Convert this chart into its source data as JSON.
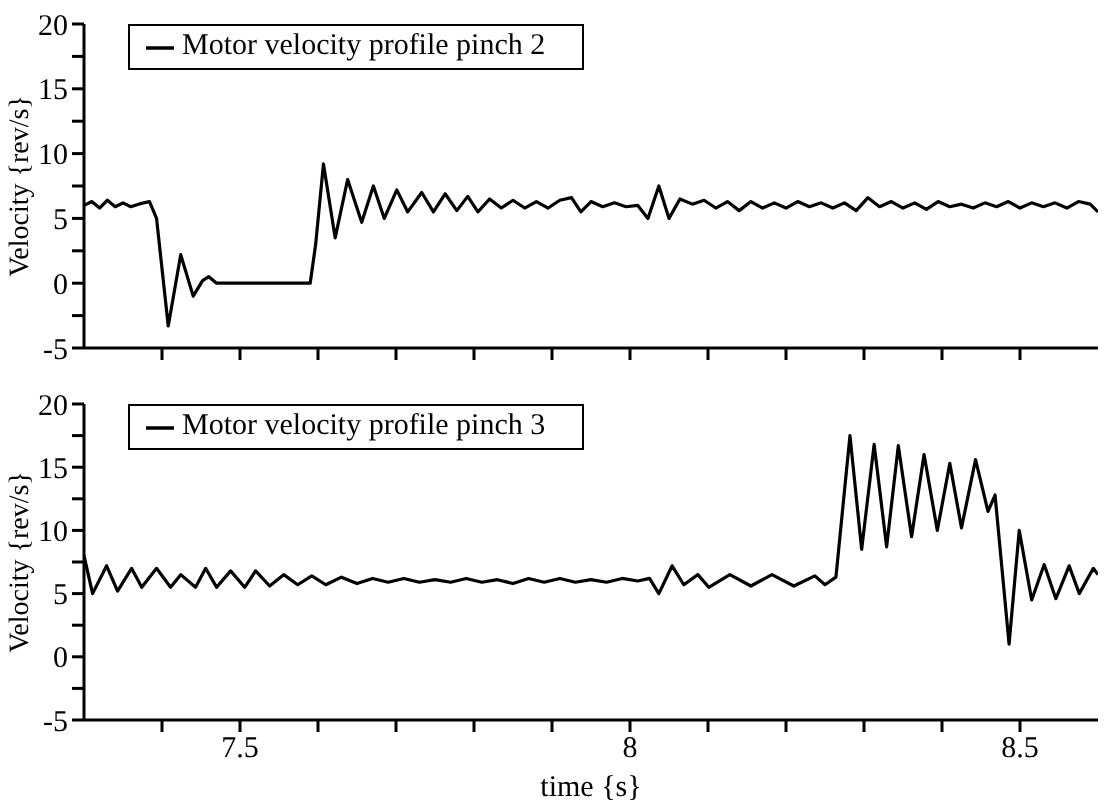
{
  "chart_data": [
    {
      "type": "line",
      "ylabel": "Velocity {rev/s}",
      "xlim": [
        7.3,
        8.6
      ],
      "xticks": [
        {
          "value": 7.4,
          "label": null
        },
        {
          "value": 7.5,
          "label": null
        },
        {
          "value": 7.6,
          "label": null
        },
        {
          "value": 7.7,
          "label": null
        },
        {
          "value": 7.8,
          "label": null
        },
        {
          "value": 7.9,
          "label": null
        },
        {
          "value": 8,
          "label": null
        },
        {
          "value": 8.1,
          "label": null
        },
        {
          "value": 8.2,
          "label": null
        },
        {
          "value": 8.3,
          "label": null
        },
        {
          "value": 8.4,
          "label": null
        },
        {
          "value": 8.5,
          "label": null
        }
      ],
      "ylim": [
        -5,
        20
      ],
      "yticks": [
        -5,
        {
          "value": -2.5,
          "label": null
        },
        0,
        {
          "value": 2.5,
          "label": null
        },
        5,
        {
          "value": 7.5,
          "label": null
        },
        10,
        {
          "value": 12.5,
          "label": null
        },
        15,
        {
          "value": 17.5,
          "label": null
        },
        20
      ],
      "tick_labels": "y",
      "legend": "top left",
      "grid": false,
      "marker": "none",
      "line_style": "solid",
      "series": [
        {
          "name": "Motor velocity profile pinch 2",
          "color": "#000000",
          "x": [
            7.3,
            7.31,
            7.32,
            7.33,
            7.34,
            7.35,
            7.36,
            7.37,
            7.384,
            7.393,
            7.408,
            7.424,
            7.44,
            7.452,
            7.46,
            7.47,
            7.59,
            7.597,
            7.607,
            7.622,
            7.638,
            7.656,
            7.671,
            7.685,
            7.701,
            7.715,
            7.733,
            7.748,
            7.763,
            7.778,
            7.792,
            7.805,
            7.82,
            7.835,
            7.85,
            7.865,
            7.88,
            7.895,
            7.91,
            7.925,
            7.937,
            7.95,
            7.965,
            7.98,
            7.995,
            8.01,
            8.023,
            8.037,
            8.05,
            8.064,
            8.08,
            8.095,
            8.11,
            8.125,
            8.14,
            8.155,
            8.17,
            8.185,
            8.2,
            8.215,
            8.23,
            8.245,
            8.26,
            8.275,
            8.29,
            8.305,
            8.32,
            8.335,
            8.35,
            8.365,
            8.38,
            8.395,
            8.41,
            8.425,
            8.44,
            8.455,
            8.47,
            8.485,
            8.5,
            8.515,
            8.53,
            8.545,
            8.56,
            8.575,
            8.59,
            8.6
          ],
          "values": [
            6,
            6.3,
            5.8,
            6.4,
            5.9,
            6.2,
            5.9,
            6.1,
            6.3,
            5,
            -3.3,
            2.2,
            -1,
            0.2,
            0.5,
            0,
            0,
            3,
            9.2,
            3.5,
            8,
            4.7,
            7.5,
            5,
            7.2,
            5.5,
            7,
            5.5,
            6.9,
            5.6,
            6.7,
            5.5,
            6.5,
            5.8,
            6.4,
            5.8,
            6.3,
            5.8,
            6.4,
            6.6,
            5.5,
            6.3,
            5.9,
            6.2,
            5.9,
            6,
            5,
            7.5,
            5,
            6.5,
            6.1,
            6.4,
            5.8,
            6.3,
            5.6,
            6.3,
            5.8,
            6.2,
            5.8,
            6.3,
            5.9,
            6.2,
            5.8,
            6.2,
            5.6,
            6.6,
            5.9,
            6.3,
            5.8,
            6.2,
            5.7,
            6.3,
            5.9,
            6.1,
            5.8,
            6.2,
            5.9,
            6.3,
            5.8,
            6.2,
            5.9,
            6.2,
            5.8,
            6.3,
            6.1,
            5.5
          ]
        }
      ]
    },
    {
      "type": "line",
      "xlabel": "time {s}",
      "ylabel": "Velocity {rev/s}",
      "xlim": [
        7.3,
        8.6
      ],
      "xticks": [
        {
          "value": 7.4,
          "label": null
        },
        {
          "value": 7.5,
          "label": "7.5"
        },
        {
          "value": 7.6,
          "label": null
        },
        {
          "value": 7.7,
          "label": null
        },
        {
          "value": 7.8,
          "label": null
        },
        {
          "value": 7.9,
          "label": null
        },
        {
          "value": 8,
          "label": "8"
        },
        {
          "value": 8.1,
          "label": null
        },
        {
          "value": 8.2,
          "label": null
        },
        {
          "value": 8.3,
          "label": null
        },
        {
          "value": 8.4,
          "label": null
        },
        {
          "value": 8.5,
          "label": "8.5"
        }
      ],
      "ylim": [
        -5,
        20
      ],
      "yticks": [
        -5,
        {
          "value": -2.5,
          "label": null
        },
        0,
        {
          "value": 2.5,
          "label": null
        },
        5,
        {
          "value": 7.5,
          "label": null
        },
        10,
        {
          "value": 12.5,
          "label": null
        },
        15,
        {
          "value": 17.5,
          "label": null
        },
        20
      ],
      "legend": "top left",
      "grid": false,
      "marker": "none",
      "line_style": "solid",
      "series": [
        {
          "name": "Motor velocity profile pinch 3",
          "color": "#000000",
          "x": [
            7.3,
            7.311,
            7.329,
            7.343,
            7.361,
            7.374,
            7.393,
            7.411,
            7.424,
            7.443,
            7.456,
            7.47,
            7.488,
            7.506,
            7.52,
            7.538,
            7.556,
            7.574,
            7.592,
            7.61,
            7.63,
            7.65,
            7.67,
            7.69,
            7.71,
            7.73,
            7.75,
            7.77,
            7.79,
            7.81,
            7.83,
            7.85,
            7.87,
            7.89,
            7.91,
            7.93,
            7.95,
            7.97,
            7.99,
            8.01,
            8.025,
            8.037,
            8.054,
            8.069,
            8.087,
            8.101,
            8.128,
            8.155,
            8.182,
            8.21,
            8.237,
            8.25,
            8.264,
            8.282,
            8.297,
            8.313,
            8.329,
            8.344,
            8.361,
            8.377,
            8.394,
            8.41,
            8.425,
            8.443,
            8.459,
            8.468,
            8.486,
            8.499,
            8.515,
            8.531,
            8.546,
            8.563,
            8.576,
            8.594,
            8.6
          ],
          "values": [
            8,
            5,
            7.2,
            5.2,
            7,
            5.5,
            7,
            5.5,
            6.5,
            5.5,
            7,
            5.5,
            6.8,
            5.5,
            6.8,
            5.6,
            6.5,
            5.7,
            6.4,
            5.7,
            6.3,
            5.8,
            6.2,
            5.9,
            6.2,
            5.9,
            6.1,
            5.9,
            6.2,
            5.9,
            6.1,
            5.8,
            6.2,
            5.9,
            6.2,
            5.9,
            6.1,
            5.9,
            6.2,
            6,
            6.2,
            5,
            7.2,
            5.7,
            6.5,
            5.5,
            6.5,
            5.6,
            6.5,
            5.6,
            6.4,
            5.7,
            6.3,
            17.5,
            8.5,
            16.8,
            8.7,
            16.7,
            9.5,
            16,
            10,
            15.3,
            10.2,
            15.6,
            11.5,
            12.8,
            1,
            10,
            4.5,
            7.3,
            4.6,
            7.2,
            5,
            7,
            6.5
          ]
        }
      ]
    }
  ]
}
